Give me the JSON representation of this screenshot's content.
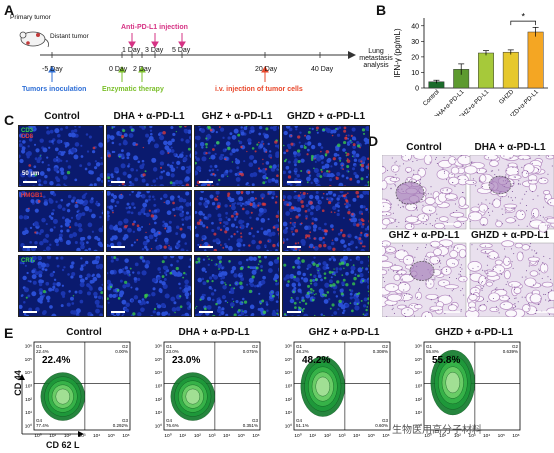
{
  "panels": {
    "a": "A",
    "b": "B",
    "c": "C",
    "d": "D",
    "e": "E"
  },
  "timeline": {
    "mouse_primary": "Primary tumor",
    "mouse_distant": "Distant tumor",
    "anti_pd_l1": "Anti-PD-L1 injection",
    "days_top": [
      "1 Day",
      "3 Day",
      "5 Day"
    ],
    "days_bottom": [
      "-5 Day",
      "0 Day",
      "2 Day",
      "20 Day",
      "40 Day"
    ],
    "tumors_inoculation": "Tumors inoculation",
    "enzymatic_therapy": "Enzymatic therapy",
    "iv_injection": "i.v. injection of tumor cells",
    "lung_analysis": "Lung metastasis analysis"
  },
  "chart_data": {
    "type": "bar",
    "ylabel": "IFN-γ (pg/mL)",
    "categories": [
      "Control",
      "DHA+α-PD-L1",
      "GHZ+α-PD-L1",
      "GHZD",
      "GHZD+α-PD-L1"
    ],
    "values": [
      4,
      12,
      22.5,
      23,
      36
    ],
    "errors": [
      1,
      3.5,
      1.5,
      1.5,
      3
    ],
    "colors": [
      "#1b6b2a",
      "#5d9a2f",
      "#a6c93a",
      "#e6c82c",
      "#f4a623"
    ],
    "yticks": [
      "0",
      "10",
      "20",
      "30",
      "40"
    ],
    "ylim": [
      0,
      45
    ],
    "significance": "*"
  },
  "panel_c": {
    "columns": [
      "Control",
      "DHA + α-PD-L1",
      "GHZ + α-PD-L1",
      "GHZD + α-PD-L1"
    ],
    "rows": [
      {
        "labels": [
          "CD3",
          "CD8"
        ],
        "colors": [
          "#39d04a",
          "#e23a3a"
        ]
      },
      {
        "labels": [
          "HMGB1"
        ],
        "colors": [
          "#e23a3a"
        ]
      },
      {
        "labels": [
          "CRT"
        ],
        "colors": [
          "#39d04a"
        ]
      }
    ],
    "scale": "50 μm"
  },
  "panel_d": {
    "titles": [
      "Control",
      "DHA + α-PD-L1",
      "GHZ + α-PD-L1",
      "GHZD + α-PD-L1"
    ]
  },
  "panel_e": {
    "titles": [
      "Control",
      "DHA + α-PD-L1",
      "GHZ + α-PD-L1",
      "GHZD + α-PD-L1"
    ],
    "percent": [
      "22.4%",
      "23.0%",
      "48.2%",
      "55.8%"
    ],
    "q1": [
      "G1\n22.4%",
      "G1\n23.0%",
      "G1\n48.2%",
      "G1\n55.8%"
    ],
    "q2": [
      "G2\n0.00%",
      "G2\n0.075%",
      "G2\n0.308%",
      "G2\n0.639%"
    ],
    "q3": [
      "G3\n0.292%",
      "G3\n0.351%",
      "G3\n0.60%",
      ""
    ],
    "q4": [
      "G4\n77.4%",
      "G4\n76.6%",
      "G4\n51.1%",
      ""
    ],
    "ylabel": "CD 44",
    "xlabel": "CD 62 L",
    "ticks": [
      "10⁶",
      "10⁵",
      "10⁴",
      "10³",
      "10²",
      "10¹",
      "10⁰"
    ],
    "xticks": [
      "10⁰",
      "10¹",
      "10²",
      "10³",
      "10⁴",
      "10⁵",
      "10⁶"
    ]
  },
  "watermark": "生物医用高分子材料"
}
